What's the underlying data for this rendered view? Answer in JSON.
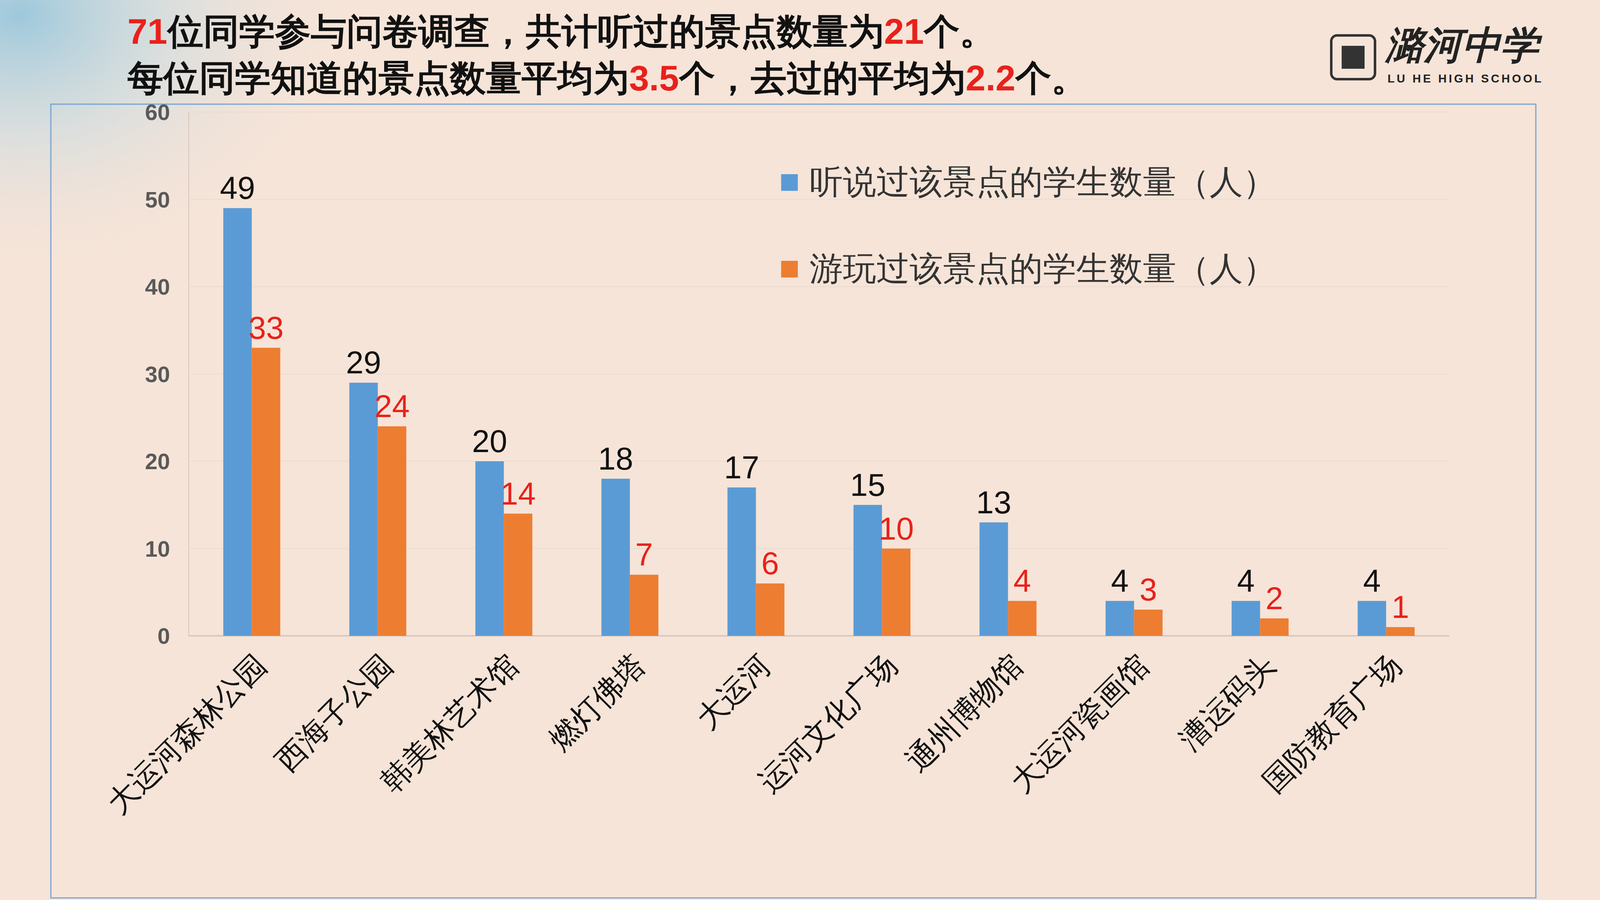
{
  "header": {
    "lines": [
      [
        {
          "text": "71",
          "emphasis": true
        },
        {
          "text": "位同学参与问卷调查，共计听过的景点数量为"
        },
        {
          "text": "21",
          "emphasis": true
        },
        {
          "text": "个。"
        }
      ],
      [
        {
          "text": "每位同学知道的景点数量平均为"
        },
        {
          "text": "3.5",
          "emphasis": true
        },
        {
          "text": "个，去过的平均为"
        },
        {
          "text": "2.2",
          "emphasis": true
        },
        {
          "text": "个。"
        }
      ]
    ]
  },
  "logo": {
    "name": "潞河中学",
    "subtitle": "LU HE HIGH SCHOOL"
  },
  "chart_data": {
    "type": "bar",
    "categories": [
      "大运河森林公园",
      "西海子公园",
      "韩美林艺术馆",
      "燃灯佛塔",
      "大运河",
      "运河文化广场",
      "通州博物馆",
      "大运河瓷画馆",
      "漕运码头",
      "国防教育广场"
    ],
    "series": [
      {
        "name": "听说过该景点的学生数量（人）",
        "color": "#5b9bd5",
        "values": [
          49,
          29,
          20,
          18,
          17,
          15,
          13,
          4,
          4,
          4
        ]
      },
      {
        "name": "游玩过该景点的学生数量（人）",
        "color": "#ed7d31",
        "values": [
          33,
          24,
          14,
          7,
          6,
          10,
          4,
          3,
          2,
          1
        ]
      }
    ],
    "ylim": [
      0,
      60
    ],
    "yticks": [
      0,
      10,
      20,
      30,
      40,
      50,
      60
    ],
    "grid": true,
    "data_labels": true,
    "legend": "upper right"
  }
}
